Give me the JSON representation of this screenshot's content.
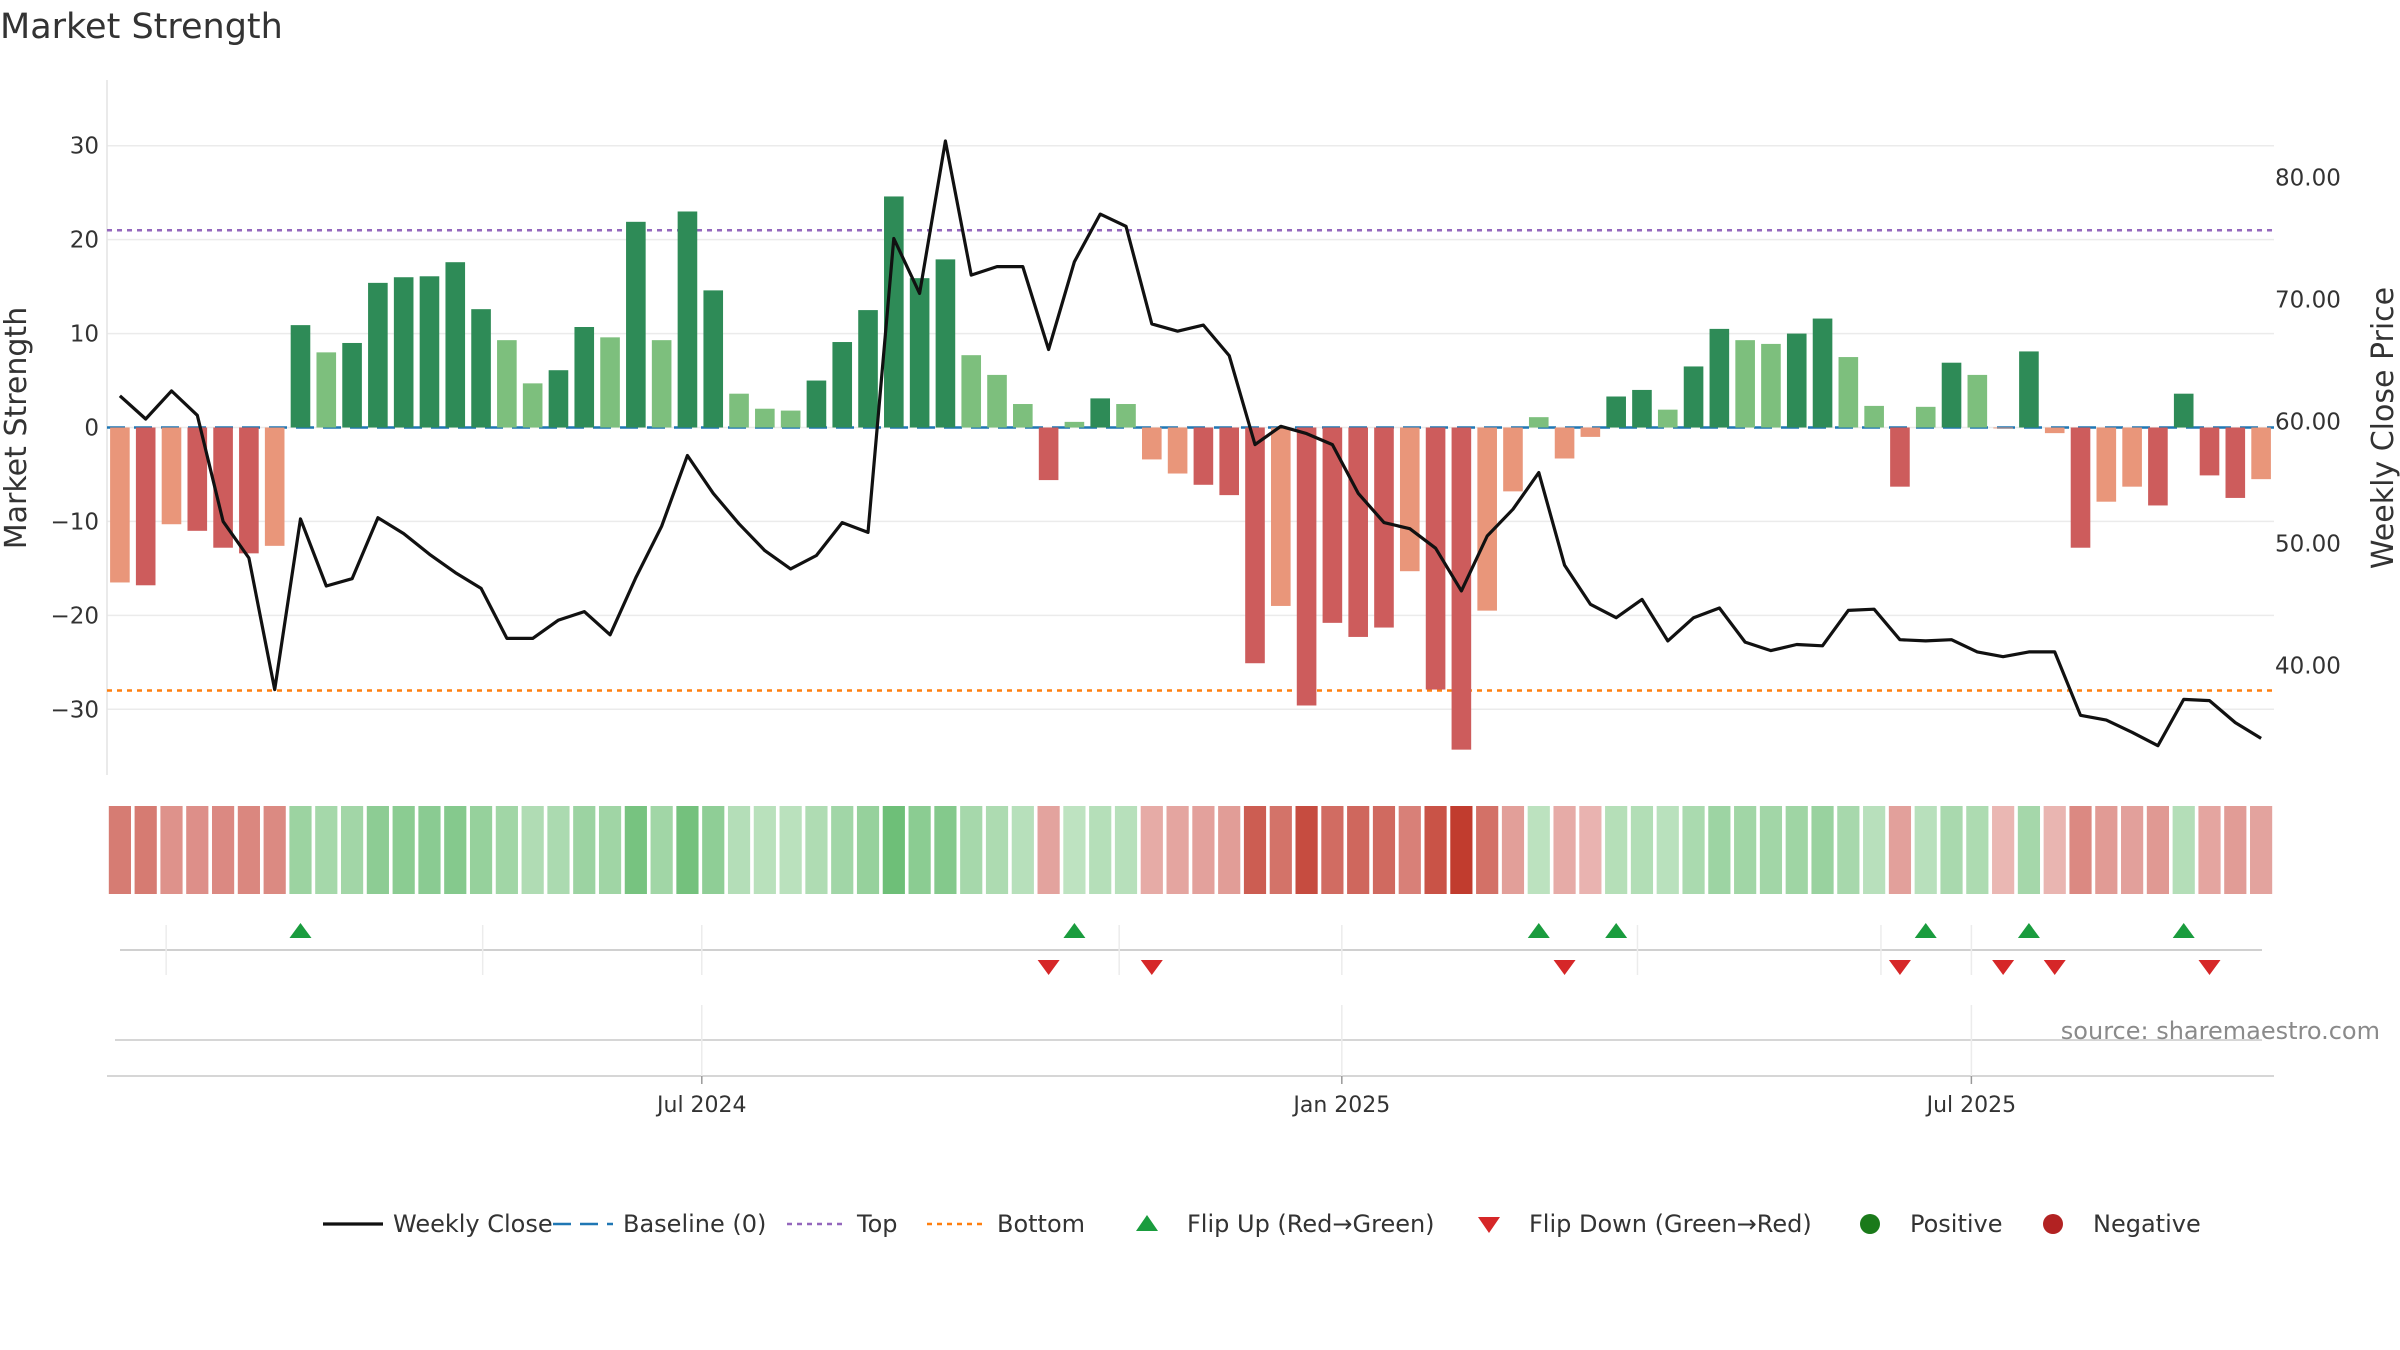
{
  "chart_data": {
    "type": "bar",
    "title": "Market Strength",
    "ylabel_left": "Market Strength",
    "ylabel_right": "Weekly Close Price",
    "ylim_left": [
      -37,
      37
    ],
    "ylim_right": [
      31,
      88
    ],
    "yticks_left": [
      30,
      20,
      10,
      0,
      -10,
      -20,
      -30
    ],
    "ytick_labels_left": [
      "30",
      "20",
      "10",
      "0",
      "−10",
      "−20",
      "−30"
    ],
    "yticks_right": [
      80,
      70,
      60,
      50,
      40
    ],
    "ytick_labels_right": [
      "80.00",
      "70.00",
      "60.00",
      "50.00",
      "40.00"
    ],
    "x_start": "2024-01-12",
    "x_end": "2025-09-26",
    "date_ticks": [
      {
        "date": "2024-07-01",
        "label": "Jul 2024"
      },
      {
        "date": "2025-01-01",
        "label": "Jan 2025"
      },
      {
        "date": "2025-07-01",
        "label": "Jul 2025"
      }
    ],
    "minor_gridline_dates": [
      "2024-01-29",
      "2024-04-29",
      "2024-10-29",
      "2025-03-27",
      "2025-06-05"
    ],
    "top_level": 21,
    "bottom_level": -28,
    "baseline": 0,
    "strength": [
      -16.5,
      -16.8,
      -10.3,
      -11.0,
      -12.8,
      -13.4,
      -12.6,
      10.9,
      8.0,
      9.0,
      15.4,
      16.0,
      16.1,
      17.6,
      12.6,
      9.3,
      4.7,
      6.1,
      10.7,
      9.6,
      21.9,
      9.3,
      23.0,
      14.6,
      3.6,
      2.0,
      1.8,
      5.0,
      9.1,
      12.5,
      24.6,
      15.9,
      17.9,
      7.7,
      5.6,
      2.5,
      -5.6,
      0.6,
      3.1,
      2.5,
      -3.4,
      -4.9,
      -6.1,
      -7.2,
      -25.1,
      -19.0,
      -29.6,
      -20.8,
      -22.3,
      -21.3,
      -15.3,
      -27.9,
      -34.3,
      -19.5,
      -6.8,
      1.1,
      -3.3,
      -1.0,
      3.3,
      4.0,
      1.9,
      6.5,
      10.5,
      9.3,
      8.9,
      10.0,
      11.6,
      7.5,
      2.3,
      -6.3,
      2.2,
      6.9,
      5.6,
      -0.1,
      8.1,
      -0.6,
      -12.8,
      -7.9,
      -6.3,
      -8.3,
      3.6,
      -5.1,
      -7.5,
      -5.5
    ],
    "weekly_close": [
      62.1,
      60.2,
      62.5,
      60.5,
      51.8,
      48.8,
      38.0,
      52.0,
      46.5,
      47.1,
      52.1,
      50.8,
      49.1,
      47.6,
      46.3,
      42.2,
      42.2,
      43.7,
      44.4,
      42.5,
      47.2,
      51.4,
      57.2,
      54.1,
      51.6,
      49.4,
      47.9,
      49.0,
      51.7,
      50.9,
      75.0,
      70.5,
      83.0,
      72.0,
      72.7,
      72.7,
      65.9,
      73.1,
      77.0,
      76.0,
      68.0,
      67.4,
      67.9,
      65.4,
      58.1,
      59.6,
      59.0,
      58.1,
      54.1,
      51.7,
      51.2,
      49.6,
      46.1,
      50.6,
      52.8,
      55.8,
      48.2,
      45.0,
      43.9,
      45.4,
      42.0,
      43.9,
      44.7,
      41.9,
      41.2,
      41.7,
      41.6,
      44.5,
      44.6,
      42.1,
      42.0,
      42.1,
      41.1,
      40.7,
      41.1,
      41.1,
      35.9,
      35.5,
      34.5,
      33.4,
      37.2,
      37.1,
      35.3,
      34.0
    ],
    "flip_up_indices": [
      7,
      37,
      55,
      58,
      70,
      74,
      80
    ],
    "flip_down_indices": [
      36,
      40,
      56,
      69,
      73,
      75,
      81
    ],
    "colors": {
      "strong_green": "#2e8b57",
      "light_green": "#7dbf7d",
      "strong_red": "#cd5c5c",
      "light_red": "#e9967a",
      "close_line": "#111111",
      "baseline": "#1f77b4",
      "top": "#9467bd",
      "bottom": "#ff7f0e",
      "flip_up": "#1a9c3e",
      "flip_down": "#d62728",
      "positive": "#1a7a1a",
      "negative": "#b22222"
    },
    "legend": [
      {
        "key": "close",
        "label": "Weekly Close"
      },
      {
        "key": "baseline",
        "label": "Baseline (0)"
      },
      {
        "key": "top",
        "label": "Top"
      },
      {
        "key": "bottom",
        "label": "Bottom"
      },
      {
        "key": "flip_up",
        "label": "Flip Up (Red→Green)"
      },
      {
        "key": "flip_down",
        "label": "Flip Down (Green→Red)"
      },
      {
        "key": "positive",
        "label": "Positive"
      },
      {
        "key": "negative",
        "label": "Negative"
      }
    ]
  },
  "source_text": "source: sharemaestro.com"
}
